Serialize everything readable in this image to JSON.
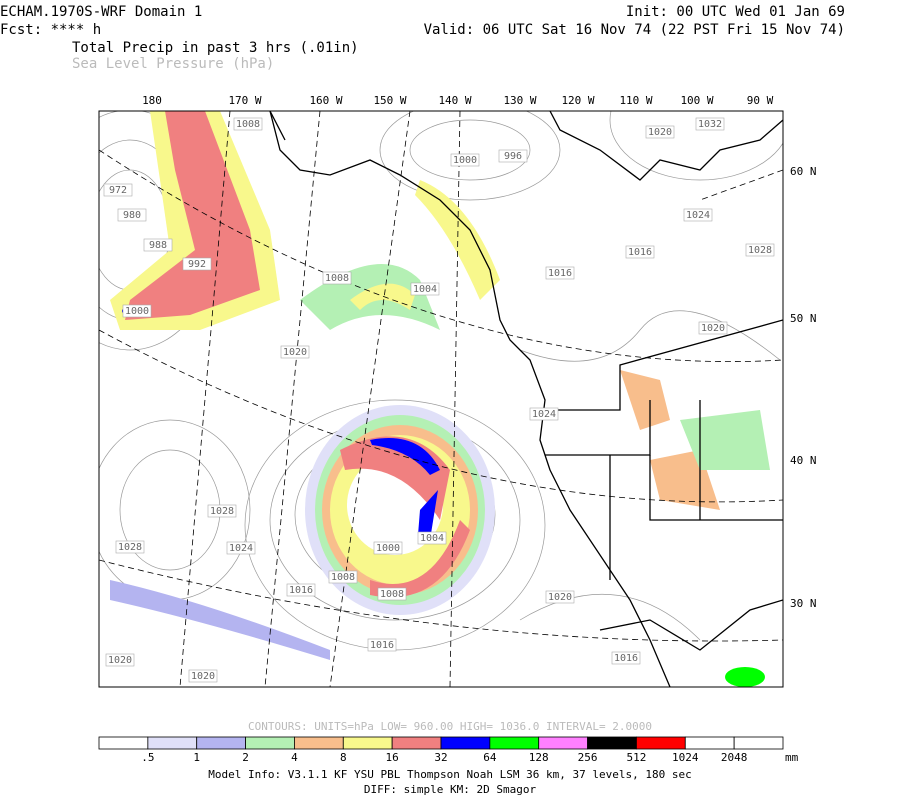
{
  "header": {
    "title": "ECHAM.1970S-WRF Domain 1",
    "forecast": "Fcst: **** h",
    "init": "Init: 00 UTC Wed 01 Jan 69",
    "valid": "Valid: 06 UTC Sat 16 Nov 74 (22 PST Fri 15 Nov 74)",
    "field1": "Total Precip in past 3 hrs (.01in)",
    "field2": "Sea Level Pressure (hPa)"
  },
  "map": {
    "lon_labels": [
      "180",
      "170 W",
      "160 W",
      "150 W",
      "140 W",
      "130 W",
      "120 W",
      "110 W",
      "100 W",
      "90 W"
    ],
    "lat_labels": [
      "60 N",
      "50 N",
      "40 N",
      "30 N"
    ],
    "pressure_labels": [
      "1008",
      "1000",
      "996",
      "1020",
      "1032",
      "1024",
      "1016",
      "1028",
      "1016",
      "1020",
      "1008",
      "1004",
      "992",
      "1000",
      "1020",
      "1024",
      "1028",
      "1028",
      "1024",
      "1016",
      "1020",
      "1016",
      "1020",
      "1020",
      "1016",
      "1008",
      "1000",
      "1004",
      "1008",
      "972",
      "980",
      "988"
    ]
  },
  "contours": "CONTOURS:  UNITS=hPa   LOW=  960.00      HIGH=  1036.0      INTERVAL=   2.0000",
  "colorbar": {
    "colors": [
      "#ffffff",
      "#e0e0f8",
      "#b4b4f0",
      "#b4f0b4",
      "#f8be8c",
      "#f8f88c",
      "#f08080",
      "#0000ff",
      "#00ff00",
      "#ff80ff",
      "#000000",
      "#ff0000",
      "#ffffff",
      "#ffffff"
    ],
    "labels": [
      ".5",
      "1",
      "2",
      "4",
      "8",
      "16",
      "32",
      "64",
      "128",
      "256",
      "512",
      "1024",
      "2048"
    ],
    "units": "mm"
  },
  "footer": {
    "line1": "Model Info: V3.1.1    KF     YSU PBL   Thompson     Noah LSM   36 km,    37 levels,   180 sec",
    "line2": "DIFF: simple KM: 2D Smagor"
  }
}
